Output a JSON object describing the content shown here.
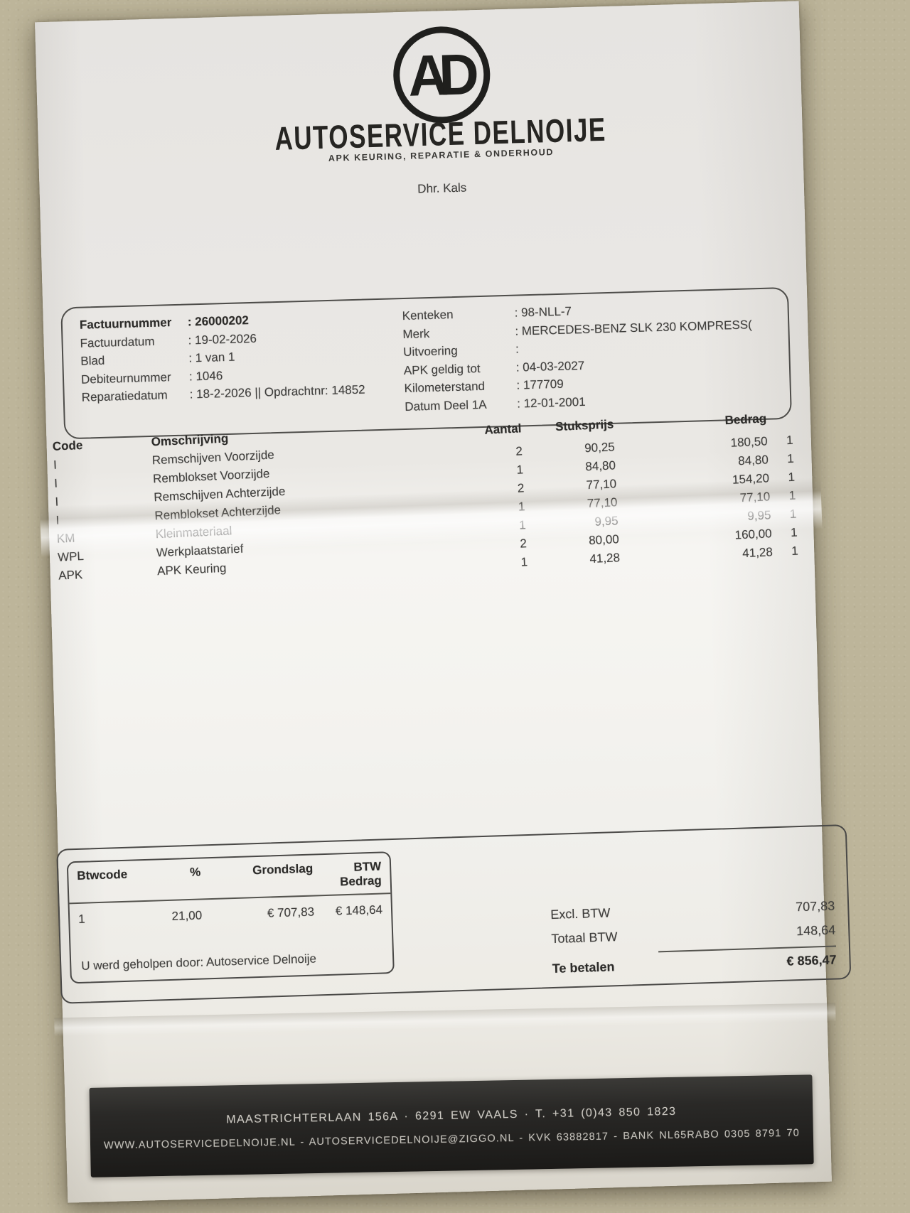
{
  "brand": {
    "monogram": "AD",
    "name": "AUTOSERVICE DELNOIJE",
    "tagline": "APK KEURING, REPARATIE & ONDERHOUD"
  },
  "customer": "Dhr. Kals",
  "details": {
    "left": [
      {
        "label": "Factuurnummer",
        "value": ": 26000202"
      },
      {
        "label": "Factuurdatum",
        "value": ": 19-02-2026"
      },
      {
        "label": "Blad",
        "value": ": 1 van 1"
      },
      {
        "label": "Debiteurnummer",
        "value": ": 1046"
      },
      {
        "label": "Reparatiedatum",
        "value": ": 18-2-2026 || Opdrachtnr: 14852"
      }
    ],
    "right": [
      {
        "label": "Kenteken",
        "value": ": 98-NLL-7"
      },
      {
        "label": "Merk",
        "value": ": MERCEDES-BENZ SLK 230 KOMPRESS("
      },
      {
        "label": "Uitvoering",
        "value": ":"
      },
      {
        "label": "APK geldig tot",
        "value": ": 04-03-2027"
      },
      {
        "label": "Kilometerstand",
        "value": ": 177709"
      },
      {
        "label": "Datum Deel 1A",
        "value": ": 12-01-2001"
      }
    ]
  },
  "items": {
    "headers": {
      "code": "Code",
      "description": "Omschrijving",
      "qty": "Aantal",
      "unit_price": "Stuksprijs",
      "amount": "Bedrag"
    },
    "rows": [
      {
        "code": "I",
        "description": "Remschijven Voorzijde",
        "qty": "2",
        "unit_price": "90,25",
        "amount": "180,50",
        "vat_code": "1"
      },
      {
        "code": "I",
        "description": "Remblokset Voorzijde",
        "qty": "1",
        "unit_price": "84,80",
        "amount": "84,80",
        "vat_code": "1"
      },
      {
        "code": "I",
        "description": "Remschijven Achterzijde",
        "qty": "2",
        "unit_price": "77,10",
        "amount": "154,20",
        "vat_code": "1"
      },
      {
        "code": "I",
        "description": "Remblokset Achterzijde",
        "qty": "1",
        "unit_price": "77,10",
        "amount": "77,10",
        "vat_code": "1"
      },
      {
        "code": "KM",
        "description": "Kleinmateriaal",
        "qty": "1",
        "unit_price": "9,95",
        "amount": "9,95",
        "vat_code": "1"
      },
      {
        "code": "WPL",
        "description": "Werkplaatstarief",
        "qty": "2",
        "unit_price": "80,00",
        "amount": "160,00",
        "vat_code": "1"
      },
      {
        "code": "APK",
        "description": "APK Keuring",
        "qty": "1",
        "unit_price": "41,28",
        "amount": "41,28",
        "vat_code": "1"
      }
    ]
  },
  "vat_box": {
    "headers": [
      "Btwcode",
      "%",
      "Grondslag",
      "BTW Bedrag"
    ],
    "row": [
      "1",
      "21,00",
      "€ 707,83",
      "€ 148,64"
    ],
    "helped_by": "U werd geholpen door: Autoservice Delnoije"
  },
  "totals": [
    {
      "label": "Excl. BTW",
      "value": "707,83"
    },
    {
      "label": "Totaal BTW",
      "value": "148,64"
    },
    {
      "label": "Te betalen",
      "value": "€ 856,47"
    }
  ],
  "footer": {
    "line1": "MAASTRICHTERLAAN 156A · 6291 EW VAALS · T. +31 (0)43 850 1823",
    "line2": "WWW.AUTOSERVICEDELNOIJE.NL - AUTOSERVICEDELNOIJE@ZIGGO.NL - KVK 63882817 - BANK NL65RABO 0305 8791 70"
  },
  "colors": {
    "paper": "#efede9",
    "ink": "#3f3e3c",
    "footer_band": "#1b1a18",
    "leather": "#bdb59a"
  }
}
